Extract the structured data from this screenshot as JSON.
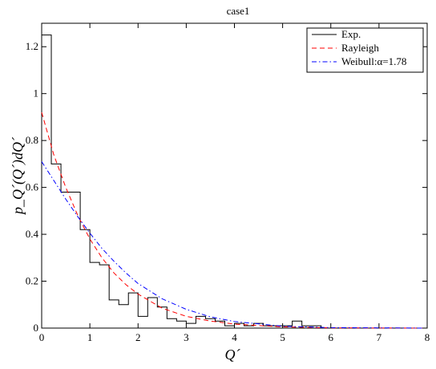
{
  "chart_data": {
    "type": "line",
    "title": "case1",
    "xlabel": "Q´",
    "ylabel": "p_Q´(Q´)dQ´",
    "xlim": [
      0,
      8
    ],
    "ylim": [
      0,
      1.3
    ],
    "x_ticks": [
      "0",
      "1",
      "2",
      "3",
      "4",
      "5",
      "6",
      "7",
      "8"
    ],
    "y_ticks": [
      "0",
      "0.2",
      "0.4",
      "0.6",
      "0.8",
      "1",
      "1.2"
    ],
    "grid": false,
    "legend_position": "top-right",
    "series": [
      {
        "name": "Exp.",
        "style": "step",
        "color": "#000000",
        "bin_edges": [
          0,
          0.2,
          0.4,
          0.8,
          1.0,
          1.2,
          1.4,
          1.6,
          1.8,
          2.0,
          2.2,
          2.4,
          2.6,
          2.8,
          3.0,
          3.2,
          3.4,
          3.6,
          3.8,
          4.0,
          4.2,
          4.4,
          4.6,
          4.8,
          5.0,
          5.2,
          5.4,
          5.6,
          5.8
        ],
        "values": [
          1.25,
          0.7,
          0.58,
          0.42,
          0.28,
          0.27,
          0.12,
          0.1,
          0.15,
          0.05,
          0.13,
          0.09,
          0.04,
          0.03,
          0.02,
          0.05,
          0.04,
          0.03,
          0.01,
          0.02,
          0.01,
          0.02,
          0.01,
          0.01,
          0.01,
          0.03,
          0.01,
          0.01
        ]
      },
      {
        "name": "Rayleigh",
        "style": "dashed",
        "color": "#ff0000",
        "x": [
          0,
          0.25,
          0.5,
          0.75,
          1.0,
          1.25,
          1.5,
          1.75,
          2.0,
          2.5,
          3.0,
          3.5,
          4.0,
          5.0,
          6.0,
          8.0
        ],
        "y": [
          0.92,
          0.74,
          0.6,
          0.48,
          0.38,
          0.3,
          0.235,
          0.185,
          0.145,
          0.085,
          0.05,
          0.03,
          0.017,
          0.005,
          0.001,
          0.0
        ]
      },
      {
        "name": "Weibull:α=1.78",
        "style": "dash-dot",
        "color": "#0000ff",
        "x": [
          0,
          0.25,
          0.5,
          0.75,
          1.0,
          1.25,
          1.5,
          1.75,
          2.0,
          2.5,
          3.0,
          3.5,
          4.0,
          5.0,
          6.0,
          8.0
        ],
        "y": [
          0.71,
          0.63,
          0.55,
          0.475,
          0.405,
          0.34,
          0.285,
          0.235,
          0.19,
          0.125,
          0.08,
          0.048,
          0.028,
          0.008,
          0.002,
          0.0
        ]
      }
    ]
  }
}
